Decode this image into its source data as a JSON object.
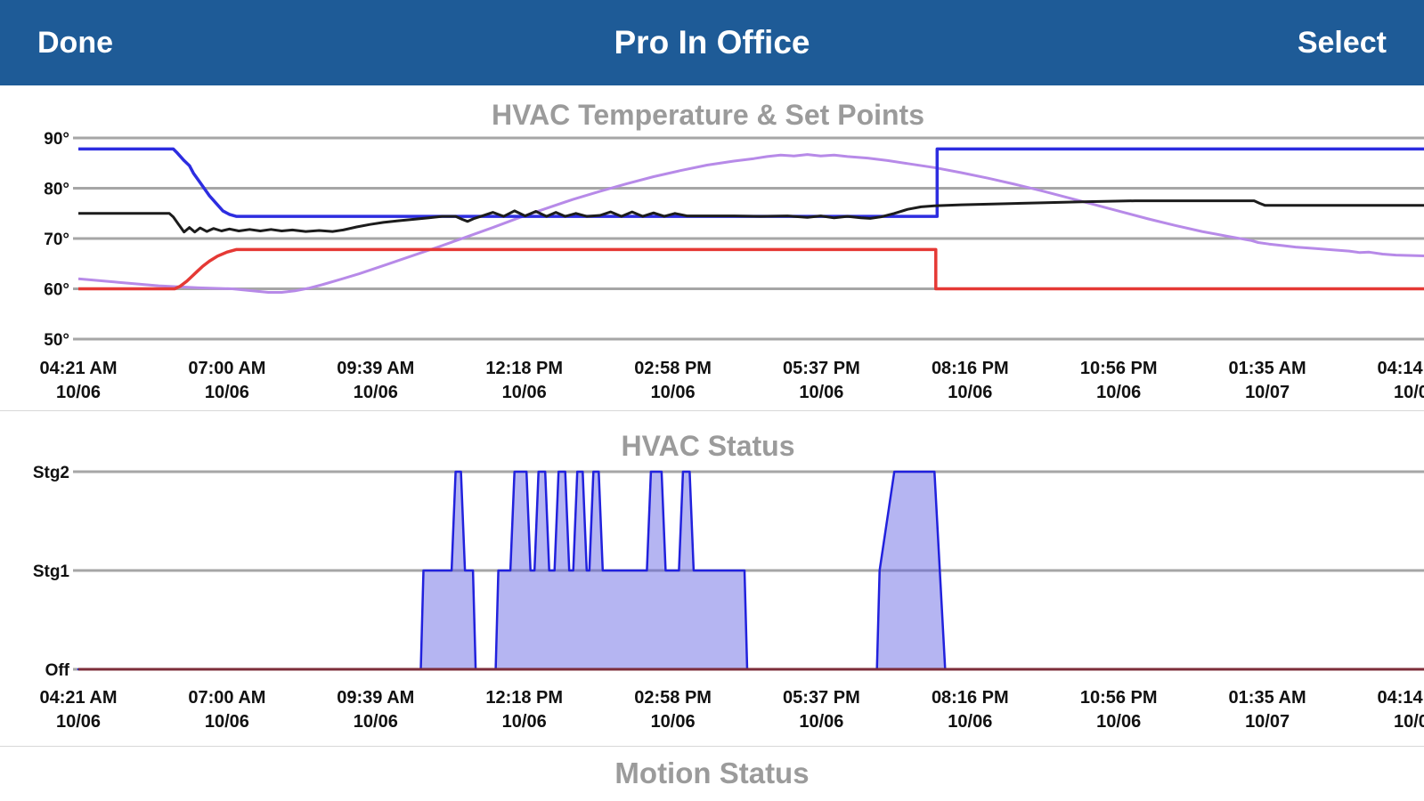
{
  "nav": {
    "done_label": "Done",
    "title": "Pro In Office",
    "select_label": "Select"
  },
  "theme": {
    "nav_bg": "#1e5b97",
    "title_color": "#9b9b9b",
    "grid_color": "#a6a6a6",
    "axis_text": "#111111",
    "cool_setpoint": "#2d2de0",
    "heat_setpoint": "#e53935",
    "indoor_temp": "#1c1c1c",
    "outdoor_temp": "#b78ae8",
    "status_fill": "rgba(92,92,226,0.45)",
    "status_stroke": "#2121dd",
    "off_line": "#7c2d3a"
  },
  "chart_data": [
    {
      "type": "line",
      "title": "HVAC Temperature & Set Points",
      "ylim": [
        50,
        90
      ],
      "yticks": [
        90,
        80,
        70,
        60,
        50
      ],
      "ytick_labels": [
        "90°",
        "80°",
        "70°",
        "60°",
        "50°"
      ],
      "x_tick_labels": [
        [
          "04:21 AM",
          "10/06"
        ],
        [
          "07:00 AM",
          "10/06"
        ],
        [
          "09:39 AM",
          "10/06"
        ],
        [
          "12:18 PM",
          "10/06"
        ],
        [
          "02:58 PM",
          "10/06"
        ],
        [
          "05:37 PM",
          "10/06"
        ],
        [
          "08:16 PM",
          "10/06"
        ],
        [
          "10:56 PM",
          "10/06"
        ],
        [
          "01:35 AM",
          "10/07"
        ],
        [
          "04:14 AM",
          "10/07"
        ]
      ],
      "series": [
        {
          "name": "outdoor-temperature",
          "color": "#b78ae8",
          "width": 3,
          "points": [
            [
              0,
              62
            ],
            [
              0.03,
              61.3
            ],
            [
              0.06,
              60.6
            ],
            [
              0.09,
              60.2
            ],
            [
              0.115,
              60
            ],
            [
              0.13,
              59.6
            ],
            [
              0.142,
              59.3
            ],
            [
              0.152,
              59.3
            ],
            [
              0.162,
              59.6
            ],
            [
              0.172,
              60.1
            ],
            [
              0.182,
              60.8
            ],
            [
              0.195,
              61.8
            ],
            [
              0.21,
              63
            ],
            [
              0.23,
              64.8
            ],
            [
              0.25,
              66.6
            ],
            [
              0.27,
              68.4
            ],
            [
              0.29,
              70.3
            ],
            [
              0.31,
              72.2
            ],
            [
              0.33,
              74.2
            ],
            [
              0.35,
              76
            ],
            [
              0.37,
              77.8
            ],
            [
              0.39,
              79.4
            ],
            [
              0.41,
              80.9
            ],
            [
              0.43,
              82.3
            ],
            [
              0.45,
              83.5
            ],
            [
              0.47,
              84.6
            ],
            [
              0.49,
              85.4
            ],
            [
              0.505,
              85.9
            ],
            [
              0.515,
              86.3
            ],
            [
              0.525,
              86.6
            ],
            [
              0.535,
              86.4
            ],
            [
              0.545,
              86.7
            ],
            [
              0.555,
              86.4
            ],
            [
              0.565,
              86.6
            ],
            [
              0.575,
              86.3
            ],
            [
              0.59,
              86
            ],
            [
              0.605,
              85.5
            ],
            [
              0.62,
              84.9
            ],
            [
              0.64,
              84.1
            ],
            [
              0.66,
              83.1
            ],
            [
              0.68,
              82
            ],
            [
              0.7,
              80.8
            ],
            [
              0.72,
              79.5
            ],
            [
              0.74,
              78.1
            ],
            [
              0.76,
              76.7
            ],
            [
              0.78,
              75.3
            ],
            [
              0.8,
              73.9
            ],
            [
              0.82,
              72.6
            ],
            [
              0.84,
              71.4
            ],
            [
              0.86,
              70.4
            ],
            [
              0.877,
              69.6
            ],
            [
              0.882,
              69.2
            ],
            [
              0.89,
              68.9
            ],
            [
              0.9,
              68.6
            ],
            [
              0.91,
              68.3
            ],
            [
              0.925,
              68
            ],
            [
              0.94,
              67.7
            ],
            [
              0.95,
              67.5
            ],
            [
              0.958,
              67.2
            ],
            [
              0.965,
              67.3
            ],
            [
              0.975,
              66.9
            ],
            [
              0.985,
              66.7
            ],
            [
              1.0,
              66.6
            ],
            [
              1.01,
              66.5
            ]
          ]
        },
        {
          "name": "heat-set-point",
          "color": "#e53935",
          "width": 3.5,
          "points": [
            [
              0,
              60
            ],
            [
              0.072,
              60
            ],
            [
              0.076,
              60.5
            ],
            [
              0.081,
              61.5
            ],
            [
              0.085,
              62.5
            ],
            [
              0.089,
              63.5
            ],
            [
              0.093,
              64.5
            ],
            [
              0.098,
              65.5
            ],
            [
              0.104,
              66.5
            ],
            [
              0.111,
              67.3
            ],
            [
              0.118,
              67.8
            ],
            [
              0.123,
              67.8
            ],
            [
              0.641,
              67.8
            ],
            [
              0.641,
              60
            ],
            [
              1.01,
              60
            ]
          ]
        },
        {
          "name": "cool-set-point",
          "color": "#2d2de0",
          "width": 3.5,
          "points": [
            [
              0,
              87.8
            ],
            [
              0.071,
              87.8
            ],
            [
              0.074,
              87
            ],
            [
              0.079,
              85.5
            ],
            [
              0.083,
              84.5
            ],
            [
              0.086,
              83
            ],
            [
              0.09,
              81.5
            ],
            [
              0.094,
              80
            ],
            [
              0.098,
              78.5
            ],
            [
              0.103,
              77
            ],
            [
              0.108,
              75.5
            ],
            [
              0.113,
              74.8
            ],
            [
              0.118,
              74.4
            ],
            [
              0.642,
              74.4
            ],
            [
              0.642,
              87.8
            ],
            [
              1.01,
              87.8
            ]
          ]
        },
        {
          "name": "indoor-temperature",
          "color": "#1c1c1c",
          "width": 3,
          "points": [
            [
              0,
              75
            ],
            [
              0.068,
              75
            ],
            [
              0.071,
              74.3
            ],
            [
              0.075,
              72.8
            ],
            [
              0.079,
              71.3
            ],
            [
              0.083,
              72.2
            ],
            [
              0.087,
              71.3
            ],
            [
              0.091,
              72.1
            ],
            [
              0.096,
              71.4
            ],
            [
              0.101,
              72
            ],
            [
              0.107,
              71.5
            ],
            [
              0.113,
              71.9
            ],
            [
              0.12,
              71.5
            ],
            [
              0.128,
              71.8
            ],
            [
              0.136,
              71.5
            ],
            [
              0.144,
              71.8
            ],
            [
              0.152,
              71.5
            ],
            [
              0.16,
              71.7
            ],
            [
              0.17,
              71.4
            ],
            [
              0.18,
              71.6
            ],
            [
              0.19,
              71.4
            ],
            [
              0.198,
              71.7
            ],
            [
              0.208,
              72.3
            ],
            [
              0.218,
              72.8
            ],
            [
              0.228,
              73.2
            ],
            [
              0.238,
              73.5
            ],
            [
              0.25,
              73.8
            ],
            [
              0.262,
              74.1
            ],
            [
              0.272,
              74.4
            ],
            [
              0.282,
              74.4
            ],
            [
              0.287,
              73.8
            ],
            [
              0.291,
              73.4
            ],
            [
              0.296,
              74
            ],
            [
              0.302,
              74.5
            ],
            [
              0.31,
              75.2
            ],
            [
              0.318,
              74.4
            ],
            [
              0.326,
              75.5
            ],
            [
              0.334,
              74.5
            ],
            [
              0.342,
              75.4
            ],
            [
              0.35,
              74.4
            ],
            [
              0.357,
              75.2
            ],
            [
              0.364,
              74.4
            ],
            [
              0.372,
              75
            ],
            [
              0.38,
              74.4
            ],
            [
              0.39,
              74.6
            ],
            [
              0.398,
              75.3
            ],
            [
              0.406,
              74.4
            ],
            [
              0.414,
              75.3
            ],
            [
              0.422,
              74.4
            ],
            [
              0.43,
              75.1
            ],
            [
              0.438,
              74.4
            ],
            [
              0.446,
              75
            ],
            [
              0.455,
              74.5
            ],
            [
              0.47,
              74.5
            ],
            [
              0.49,
              74.5
            ],
            [
              0.51,
              74.4
            ],
            [
              0.53,
              74.5
            ],
            [
              0.545,
              74.2
            ],
            [
              0.555,
              74.5
            ],
            [
              0.565,
              74.1
            ],
            [
              0.575,
              74.4
            ],
            [
              0.585,
              74.1
            ],
            [
              0.592,
              74
            ],
            [
              0.6,
              74.3
            ],
            [
              0.61,
              75
            ],
            [
              0.62,
              75.8
            ],
            [
              0.63,
              76.3
            ],
            [
              0.64,
              76.5
            ],
            [
              0.66,
              76.7
            ],
            [
              0.69,
              76.9
            ],
            [
              0.72,
              77.1
            ],
            [
              0.75,
              77.3
            ],
            [
              0.79,
              77.5
            ],
            [
              0.84,
              77.5
            ],
            [
              0.879,
              77.5
            ],
            [
              0.883,
              77
            ],
            [
              0.887,
              76.6
            ],
            [
              1.01,
              76.6
            ]
          ]
        }
      ]
    },
    {
      "type": "area",
      "title": "HVAC Status",
      "ylim": [
        0,
        2
      ],
      "yticks": [
        2,
        1,
        0
      ],
      "ytick_labels": [
        "Stg2",
        "Stg1",
        "Off"
      ],
      "x_tick_labels": [
        [
          "04:21 AM",
          "10/06"
        ],
        [
          "07:00 AM",
          "10/06"
        ],
        [
          "09:39 AM",
          "10/06"
        ],
        [
          "12:18 PM",
          "10/06"
        ],
        [
          "02:58 PM",
          "10/06"
        ],
        [
          "05:37 PM",
          "10/06"
        ],
        [
          "08:16 PM",
          "10/06"
        ],
        [
          "10:56 PM",
          "10/06"
        ],
        [
          "01:35 AM",
          "10/07"
        ],
        [
          "04:14 AM",
          "10/07"
        ]
      ],
      "series": [
        {
          "name": "hvac-stage",
          "fill": "rgba(92,92,226,0.45)",
          "stroke": "#2121dd",
          "width": 2.5,
          "points": [
            [
              0,
              0
            ],
            [
              0.256,
              0
            ],
            [
              0.258,
              1
            ],
            [
              0.279,
              1
            ],
            [
              0.282,
              2
            ],
            [
              0.286,
              2
            ],
            [
              0.289,
              1
            ],
            [
              0.295,
              1
            ],
            [
              0.297,
              0
            ],
            [
              0.312,
              0
            ],
            [
              0.314,
              1
            ],
            [
              0.323,
              1
            ],
            [
              0.326,
              2
            ],
            [
              0.335,
              2
            ],
            [
              0.338,
              1
            ],
            [
              0.341,
              1
            ],
            [
              0.344,
              2
            ],
            [
              0.349,
              2
            ],
            [
              0.352,
              1
            ],
            [
              0.356,
              1
            ],
            [
              0.359,
              2
            ],
            [
              0.364,
              2
            ],
            [
              0.367,
              1
            ],
            [
              0.37,
              1
            ],
            [
              0.373,
              2
            ],
            [
              0.377,
              2
            ],
            [
              0.38,
              1
            ],
            [
              0.382,
              1
            ],
            [
              0.385,
              2
            ],
            [
              0.389,
              2
            ],
            [
              0.392,
              1
            ],
            [
              0.425,
              1
            ],
            [
              0.428,
              2
            ],
            [
              0.436,
              2
            ],
            [
              0.439,
              1
            ],
            [
              0.449,
              1
            ],
            [
              0.452,
              2
            ],
            [
              0.457,
              2
            ],
            [
              0.46,
              1
            ],
            [
              0.498,
              1
            ],
            [
              0.5,
              0
            ],
            [
              0.597,
              0
            ],
            [
              0.599,
              1
            ],
            [
              0.61,
              2
            ],
            [
              0.64,
              2
            ],
            [
              0.648,
              0
            ],
            [
              1.01,
              0
            ]
          ]
        },
        {
          "name": "off-baseline",
          "color": "#7c2d3a",
          "width": 3,
          "points": [
            [
              0,
              0
            ],
            [
              1.01,
              0
            ]
          ]
        }
      ]
    },
    {
      "type": "line",
      "title": "Motion Status"
    }
  ]
}
